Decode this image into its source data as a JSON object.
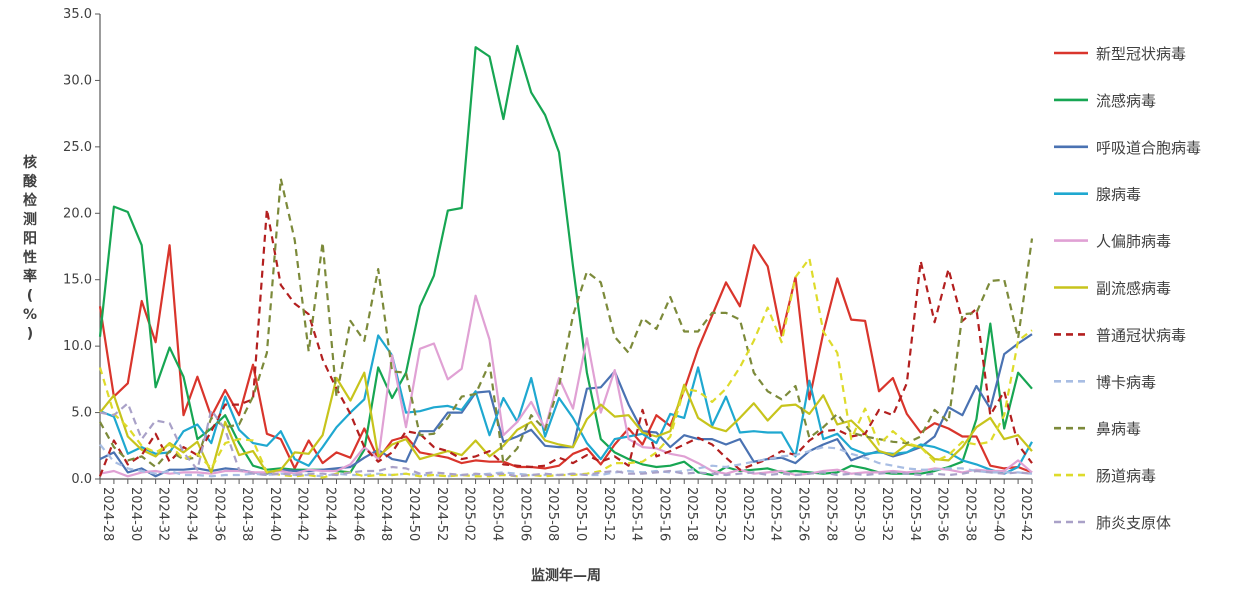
{
  "chart_data": {
    "type": "line",
    "title": "",
    "xlabel": "监测年—周",
    "ylabel": "核酸检测阳性率(%)",
    "ylim": [
      0,
      35
    ],
    "yticks": [
      "0.0",
      "5.0",
      "10.0",
      "15.0",
      "20.0",
      "25.0",
      "30.0",
      "35.0"
    ],
    "x": [
      "2024-28",
      "2024-29",
      "2024-30",
      "2024-31",
      "2024-32",
      "2024-33",
      "2024-34",
      "2024-35",
      "2024-36",
      "2024-37",
      "2024-38",
      "2024-39",
      "2024-40",
      "2024-41",
      "2024-42",
      "2024-43",
      "2024-44",
      "2024-45",
      "2024-46",
      "2024-47",
      "2024-48",
      "2024-49",
      "2024-50",
      "2024-51",
      "2024-52",
      "2025-01",
      "2025-02",
      "2025-03",
      "2025-04",
      "2025-05",
      "2025-06",
      "2025-07",
      "2025-08",
      "2025-09",
      "2025-10",
      "2025-11",
      "2025-12",
      "2025-13",
      "2025-14",
      "2025-15",
      "2025-16",
      "2025-17",
      "2025-18",
      "2025-19",
      "2025-20",
      "2025-21",
      "2025-22",
      "2025-23",
      "2025-24",
      "2025-25",
      "2025-26",
      "2025-27",
      "2025-28",
      "2025-29",
      "2025-30",
      "2025-31",
      "2025-32",
      "2025-33",
      "2025-34",
      "2025-35",
      "2025-36",
      "2025-37",
      "2025-38",
      "2025-39",
      "2025-40",
      "2025-41",
      "2025-42",
      "2025-43"
    ],
    "xtick_labels": [
      "2024-28",
      "2024-30",
      "2024-32",
      "2024-34",
      "2024-36",
      "2024-38",
      "2024-40",
      "2024-42",
      "2024-44",
      "2024-46",
      "2024-48",
      "2024-50",
      "2024-52",
      "2025-02",
      "2025-04",
      "2025-06",
      "2025-08",
      "2025-10",
      "2025-12",
      "2025-14",
      "2025-16",
      "2025-18",
      "2025-20",
      "2025-22",
      "2025-24",
      "2025-26",
      "2025-28",
      "2025-30",
      "2025-32",
      "2025-34",
      "2025-36",
      "2025-38",
      "2025-40",
      "2025-42"
    ],
    "legend_position": "right",
    "grid": false,
    "series": [
      {
        "name": "新型冠状病毒",
        "color": "#d9352c",
        "dash": "solid",
        "values": [
          13.0,
          6.2,
          7.2,
          13.4,
          10.3,
          17.6,
          4.8,
          7.7,
          4.7,
          6.7,
          4.8,
          8.6,
          3.4,
          3.0,
          0.8,
          2.9,
          1.2,
          2.0,
          1.6,
          3.8,
          1.5,
          2.9,
          3.2,
          2.0,
          1.8,
          1.6,
          1.2,
          1.4,
          1.3,
          1.3,
          0.9,
          0.9,
          0.8,
          1.0,
          1.9,
          2.3,
          1.1,
          2.6,
          3.8,
          2.6,
          4.8,
          4.0,
          6.7,
          9.8,
          12.3,
          14.8,
          13.0,
          17.6,
          16.0,
          10.8,
          15.2,
          6.0,
          11.0,
          15.1,
          12.0,
          11.9,
          6.6,
          7.6,
          4.9,
          3.5,
          4.2,
          3.8,
          3.2,
          3.2,
          1.0,
          0.8,
          0.9,
          0.5
        ]
      },
      {
        "name": "流感病毒",
        "color": "#17a653",
        "dash": "solid",
        "values": [
          10.7,
          20.5,
          20.1,
          17.6,
          6.9,
          9.9,
          7.7,
          3.0,
          3.8,
          4.8,
          2.7,
          1.0,
          0.7,
          0.8,
          0.7,
          0.7,
          0.7,
          0.6,
          0.5,
          2.2,
          8.4,
          6.1,
          8.0,
          13.0,
          15.3,
          20.2,
          20.4,
          32.5,
          31.8,
          27.1,
          32.6,
          29.1,
          27.4,
          24.6,
          16.0,
          8.0,
          3.0,
          2.0,
          1.5,
          1.1,
          0.9,
          1.0,
          1.3,
          0.5,
          0.3,
          0.9,
          0.6,
          0.7,
          0.8,
          0.5,
          0.6,
          0.5,
          0.4,
          0.5,
          1.0,
          0.8,
          0.5,
          0.4,
          0.4,
          0.4,
          0.6,
          0.9,
          1.3,
          4.5,
          11.7,
          3.8,
          8.0,
          6.8
        ]
      },
      {
        "name": "呼吸道合胞病毒",
        "color": "#4a72b2",
        "dash": "solid",
        "values": [
          1.5,
          2.0,
          0.5,
          0.8,
          0.2,
          0.7,
          0.7,
          0.8,
          0.6,
          0.8,
          0.7,
          0.5,
          0.4,
          0.7,
          0.6,
          0.6,
          0.7,
          0.8,
          0.9,
          1.6,
          2.2,
          1.5,
          1.3,
          3.6,
          3.6,
          5.0,
          5.0,
          6.5,
          6.6,
          2.8,
          3.2,
          3.7,
          2.5,
          2.4,
          2.4,
          6.8,
          6.9,
          8.1,
          5.6,
          3.6,
          3.5,
          2.4,
          3.3,
          3.0,
          3.0,
          2.6,
          3.0,
          1.3,
          1.5,
          1.6,
          1.2,
          2.1,
          2.6,
          3.0,
          1.4,
          1.8,
          2.1,
          1.7,
          2.0,
          2.4,
          3.2,
          5.4,
          4.8,
          7.0,
          5.3,
          9.4,
          10.2,
          10.9
        ]
      },
      {
        "name": "腺病毒",
        "color": "#1fa8d0",
        "dash": "solid",
        "values": [
          5.1,
          4.7,
          1.9,
          2.4,
          1.9,
          2.0,
          3.6,
          4.1,
          2.7,
          6.2,
          3.7,
          2.7,
          2.5,
          3.6,
          1.5,
          1.0,
          2.4,
          3.9,
          5.0,
          6.0,
          10.8,
          9.3,
          5.0,
          5.1,
          5.4,
          5.5,
          5.2,
          6.6,
          3.3,
          6.1,
          4.3,
          7.6,
          3.2,
          6.1,
          4.6,
          2.7,
          1.5,
          3.0,
          3.2,
          3.4,
          2.7,
          4.9,
          4.6,
          8.4,
          4.0,
          6.2,
          3.5,
          3.6,
          3.5,
          3.5,
          1.7,
          7.4,
          3.0,
          3.4,
          2.3,
          1.9,
          2.0,
          1.9,
          2.0,
          2.6,
          2.4,
          2.0,
          1.4,
          1.1,
          0.7,
          0.4,
          0.9,
          2.8
        ]
      },
      {
        "name": "人偏肺病毒",
        "color": "#e0a1d4",
        "dash": "solid",
        "values": [
          0.4,
          0.6,
          0.2,
          0.5,
          0.6,
          0.4,
          0.5,
          0.5,
          0.4,
          0.6,
          0.6,
          0.5,
          0.5,
          0.6,
          0.4,
          0.7,
          0.6,
          0.6,
          1.1,
          2.4,
          1.5,
          9.3,
          3.9,
          9.8,
          10.2,
          7.5,
          8.3,
          13.8,
          10.5,
          3.3,
          4.3,
          5.8,
          3.8,
          7.6,
          5.3,
          10.6,
          5.0,
          8.2,
          3.0,
          2.4,
          2.3,
          1.9,
          1.7,
          1.2,
          0.6,
          0.4,
          0.7,
          0.4,
          0.5,
          0.6,
          0.3,
          0.4,
          0.6,
          0.7,
          0.4,
          0.5,
          0.5,
          0.6,
          0.5,
          0.6,
          0.8,
          0.7,
          0.5,
          0.7,
          0.6,
          0.6,
          1.4,
          0.5
        ]
      },
      {
        "name": "副流感病毒",
        "color": "#c7c41c",
        "dash": "solid",
        "values": [
          5.0,
          6.3,
          3.2,
          2.2,
          1.7,
          2.7,
          2.0,
          2.8,
          0.5,
          4.3,
          1.8,
          2.1,
          0.5,
          0.7,
          2.0,
          1.9,
          3.3,
          7.6,
          5.9,
          8.0,
          1.7,
          2.6,
          3.0,
          1.5,
          1.8,
          2.1,
          1.8,
          2.9,
          1.7,
          2.5,
          3.7,
          4.3,
          2.9,
          2.6,
          2.4,
          4.5,
          5.6,
          4.7,
          4.8,
          3.5,
          3.2,
          3.6,
          7.1,
          4.6,
          3.9,
          3.6,
          4.6,
          5.7,
          4.4,
          5.5,
          5.6,
          4.9,
          6.3,
          4.1,
          4.4,
          3.4,
          2.1,
          1.8,
          2.6,
          2.4,
          1.5,
          1.4,
          2.4,
          3.9,
          4.6,
          3.0,
          3.3,
          2.1
        ]
      },
      {
        "name": "普通冠状病毒",
        "color": "#b31f1f",
        "dash": "dash",
        "values": [
          0.2,
          2.9,
          1.1,
          1.8,
          3.4,
          1.3,
          2.4,
          1.8,
          3.6,
          5.6,
          5.6,
          6.0,
          20.3,
          14.6,
          13.2,
          12.4,
          9.0,
          6.8,
          4.9,
          2.4,
          1.3,
          2.0,
          3.6,
          3.4,
          2.4,
          2.1,
          1.5,
          1.7,
          2.1,
          1.1,
          1.0,
          0.9,
          1.0,
          1.6,
          1.2,
          1.8,
          1.3,
          1.7,
          1.0,
          5.2,
          1.7,
          2.1,
          2.6,
          3.1,
          2.6,
          1.6,
          0.7,
          1.1,
          1.5,
          2.1,
          1.8,
          2.9,
          3.6,
          3.7,
          3.2,
          3.4,
          5.2,
          4.8,
          7.2,
          16.4,
          11.8,
          15.8,
          11.9,
          12.8,
          4.8,
          6.6,
          2.6,
          1.2
        ]
      },
      {
        "name": "博卡病毒",
        "color": "#a8bde3",
        "dash": "dash",
        "values": [
          2.6,
          1.3,
          0.8,
          0.6,
          0.4,
          0.6,
          0.3,
          0.3,
          0.2,
          0.3,
          0.3,
          0.4,
          0.3,
          0.4,
          0.3,
          0.3,
          0.2,
          0.4,
          0.3,
          0.3,
          0.4,
          0.3,
          0.4,
          0.3,
          0.3,
          0.2,
          0.3,
          0.3,
          0.4,
          0.5,
          0.4,
          0.3,
          0.3,
          0.3,
          0.4,
          0.3,
          0.3,
          0.5,
          0.6,
          0.5,
          0.6,
          0.5,
          0.6,
          0.8,
          1.0,
          0.9,
          1.1,
          1.3,
          1.5,
          1.7,
          1.8,
          2.1,
          2.4,
          2.3,
          1.9,
          1.6,
          1.2,
          1.0,
          0.8,
          0.7,
          0.7,
          0.8,
          0.8,
          0.6,
          0.5,
          0.5,
          0.5,
          0.4
        ]
      },
      {
        "name": "鼻病毒",
        "color": "#7c8a3a",
        "dash": "dash",
        "values": [
          4.3,
          2.4,
          1.4,
          1.7,
          0.9,
          2.1,
          1.5,
          1.6,
          4.6,
          3.9,
          4.1,
          6.2,
          9.5,
          22.6,
          18.0,
          9.6,
          17.8,
          6.2,
          11.9,
          10.4,
          15.8,
          8.1,
          8.0,
          3.3,
          3.4,
          4.6,
          6.2,
          6.4,
          8.7,
          1.2,
          2.3,
          4.8,
          3.7,
          7.0,
          12.3,
          15.6,
          14.8,
          10.7,
          9.5,
          12.1,
          11.3,
          13.7,
          11.1,
          11.1,
          12.5,
          12.5,
          12.0,
          8.0,
          6.6,
          6.0,
          7.0,
          3.1,
          3.9,
          4.9,
          3.5,
          3.2,
          3.0,
          2.8,
          2.7,
          3.2,
          5.2,
          4.3,
          12.4,
          12.5,
          14.9,
          15.0,
          10.6,
          18.1
        ]
      },
      {
        "name": "肠道病毒",
        "color": "#dedb2b",
        "dash": "dash",
        "values": [
          8.4,
          4.9,
          3.9,
          2.5,
          2.0,
          2.6,
          1.5,
          1.9,
          0.8,
          2.7,
          3.0,
          2.9,
          0.5,
          0.3,
          0.2,
          0.3,
          0.1,
          0.4,
          0.5,
          0.2,
          0.3,
          0.3,
          0.4,
          0.2,
          0.3,
          0.2,
          0.3,
          0.2,
          0.2,
          0.3,
          0.2,
          0.3,
          0.2,
          0.3,
          0.3,
          0.4,
          0.6,
          1.2,
          1.2,
          1.3,
          2.0,
          3.2,
          6.8,
          6.6,
          5.8,
          6.8,
          8.4,
          10.4,
          12.9,
          10.3,
          15.2,
          16.6,
          11.1,
          9.5,
          3.0,
          5.3,
          2.6,
          3.6,
          2.7,
          2.4,
          1.3,
          1.8,
          2.8,
          2.6,
          2.8,
          4.8,
          10.4,
          11.2
        ]
      },
      {
        "name": "肺炎支原体",
        "color": "#a9a1c8",
        "dash": "dash",
        "values": [
          5.0,
          4.8,
          5.7,
          3.0,
          4.4,
          4.2,
          2.0,
          0.7,
          5.2,
          3.7,
          0.7,
          0.4,
          0.3,
          0.4,
          0.3,
          0.4,
          0.4,
          0.3,
          0.5,
          0.6,
          0.6,
          0.9,
          0.8,
          0.4,
          0.5,
          0.4,
          0.3,
          0.4,
          0.3,
          0.4,
          0.2,
          0.3,
          0.4,
          0.3,
          0.4,
          0.3,
          0.5,
          0.6,
          0.4,
          0.4,
          0.5,
          0.6,
          0.4,
          0.5,
          0.4,
          0.3,
          0.4,
          0.5,
          0.3,
          0.4,
          0.3,
          0.4,
          0.5,
          0.3,
          0.4,
          0.3,
          0.4,
          0.5,
          0.4,
          0.3,
          0.4,
          0.3,
          0.4,
          0.6,
          0.5,
          0.4,
          0.5,
          0.4
        ]
      }
    ]
  }
}
